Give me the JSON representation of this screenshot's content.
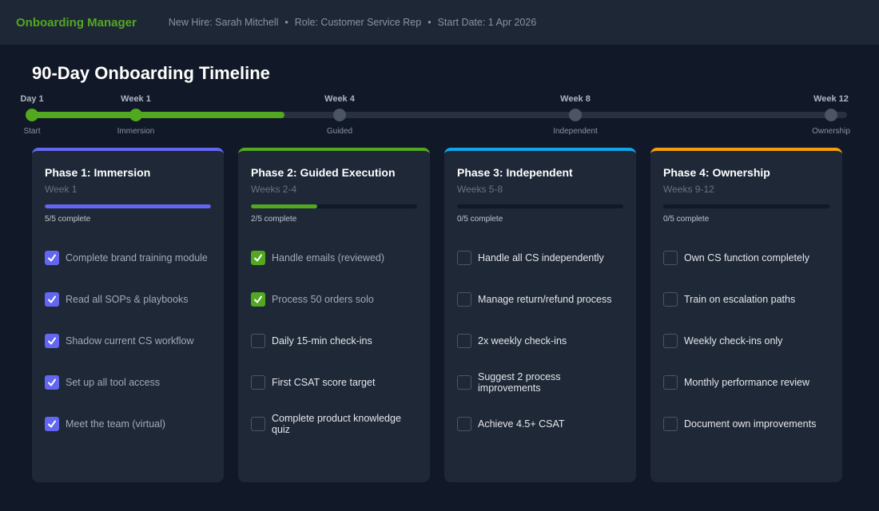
{
  "header": {
    "app_name": "Onboarding Manager",
    "info": [
      "New Hire: Sarah Mitchell",
      "Role: Customer Service Rep",
      "Start Date: 1 Apr 2026"
    ],
    "separator": "•"
  },
  "title": "90-Day Onboarding Timeline",
  "timeline": {
    "progress_percent": 31,
    "markers": [
      {
        "label": "Day 1",
        "caption": "Start",
        "reached": true
      },
      {
        "label": "Week 1",
        "caption": "Immersion",
        "reached": true
      },
      {
        "label": "Week 4",
        "caption": "Guided",
        "reached": false
      },
      {
        "label": "Week 8",
        "caption": "Independent",
        "reached": false
      },
      {
        "label": "Week 12",
        "caption": "Ownership",
        "reached": false
      }
    ]
  },
  "phases": [
    {
      "title": "Phase 1: Immersion",
      "subtitle": "Week 1",
      "color": "#6366f1",
      "progress": "5/5 complete",
      "tasks": [
        {
          "text": "Complete brand training module",
          "done": true
        },
        {
          "text": "Read all SOPs & playbooks",
          "done": true
        },
        {
          "text": "Shadow current CS workflow",
          "done": true
        },
        {
          "text": "Set up all tool access",
          "done": true
        },
        {
          "text": "Meet the team (virtual)",
          "done": true
        }
      ]
    },
    {
      "title": "Phase 2: Guided Execution",
      "subtitle": "Weeks 2-4",
      "color": "#52a820",
      "progress": "2/5 complete",
      "tasks": [
        {
          "text": "Handle emails (reviewed)",
          "done": true
        },
        {
          "text": "Process 50 orders solo",
          "done": true
        },
        {
          "text": "Daily 15-min check-ins",
          "done": false
        },
        {
          "text": "First CSAT score target",
          "done": false
        },
        {
          "text": "Complete product knowledge quiz",
          "done": false
        }
      ]
    },
    {
      "title": "Phase 3: Independent",
      "subtitle": "Weeks 5-8",
      "color": "#0ea5e9",
      "progress": "0/5 complete",
      "tasks": [
        {
          "text": "Handle all CS independently",
          "done": false
        },
        {
          "text": "Manage return/refund process",
          "done": false
        },
        {
          "text": "2x weekly check-ins",
          "done": false
        },
        {
          "text": "Suggest 2 process improvements",
          "done": false
        },
        {
          "text": "Achieve 4.5+ CSAT",
          "done": false
        }
      ]
    },
    {
      "title": "Phase 4: Ownership",
      "subtitle": "Weeks 9-12",
      "color": "#f59e0b",
      "progress": "0/5 complete",
      "tasks": [
        {
          "text": "Own CS function completely",
          "done": false
        },
        {
          "text": "Train on escalation paths",
          "done": false
        },
        {
          "text": "Weekly check-ins only",
          "done": false
        },
        {
          "text": "Monthly performance review",
          "done": false
        },
        {
          "text": "Document own improvements",
          "done": false
        }
      ]
    }
  ]
}
